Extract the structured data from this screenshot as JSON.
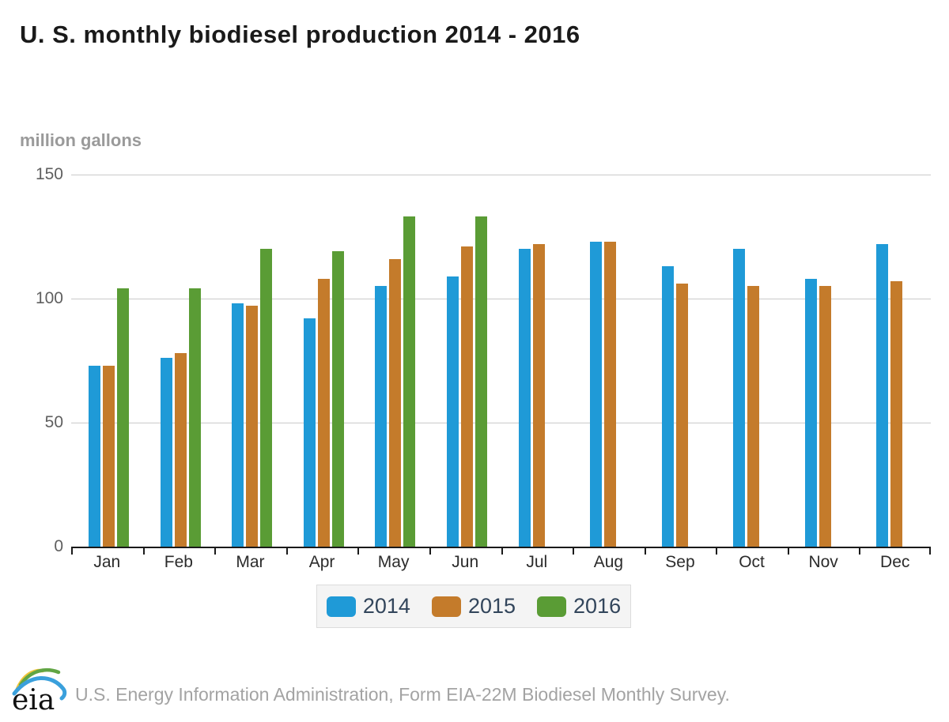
{
  "title": "U. S. monthly biodiesel production 2014 - 2016",
  "y_axis_unit": "million gallons",
  "footer": {
    "logo_text": "eia",
    "source_text": "U.S. Energy Information Administration, Form EIA-22M Biodiesel Monthly Survey."
  },
  "colors": {
    "series_2014": "#1f9ad7",
    "series_2015": "#c47b2b",
    "series_2016": "#5a9c35",
    "gridline": "#c9c9c9",
    "axis": "#1a1a1a",
    "legend_text": "#32455b",
    "legend_background": "#f4f4f4",
    "legend_border": "#dcdcdc",
    "title_text": "#1a1a1a",
    "unit_text": "#9a9a9a",
    "footer_text": "#a3a3a3"
  },
  "chart_data": {
    "type": "bar",
    "title": "U. S. monthly biodiesel production 2014 - 2016",
    "xlabel": "",
    "ylabel": "million gallons",
    "categories": [
      "Jan",
      "Feb",
      "Mar",
      "Apr",
      "May",
      "Jun",
      "Jul",
      "Aug",
      "Sep",
      "Oct",
      "Nov",
      "Dec"
    ],
    "series": [
      {
        "name": "2014",
        "color": "#1f9ad7",
        "values": [
          73,
          76,
          98,
          92,
          105,
          109,
          120,
          123,
          113,
          120,
          108,
          122
        ]
      },
      {
        "name": "2015",
        "color": "#c47b2b",
        "values": [
          73,
          78,
          97,
          108,
          116,
          121,
          122,
          123,
          106,
          105,
          105,
          107
        ]
      },
      {
        "name": "2016",
        "color": "#5a9c35",
        "values": [
          104,
          104,
          120,
          119,
          133,
          133,
          null,
          null,
          null,
          null,
          null,
          null
        ]
      }
    ],
    "ylim": [
      0,
      150
    ],
    "yticks": [
      0,
      50,
      100,
      150
    ],
    "grid": "horizontal",
    "legend_position": "bottom"
  }
}
